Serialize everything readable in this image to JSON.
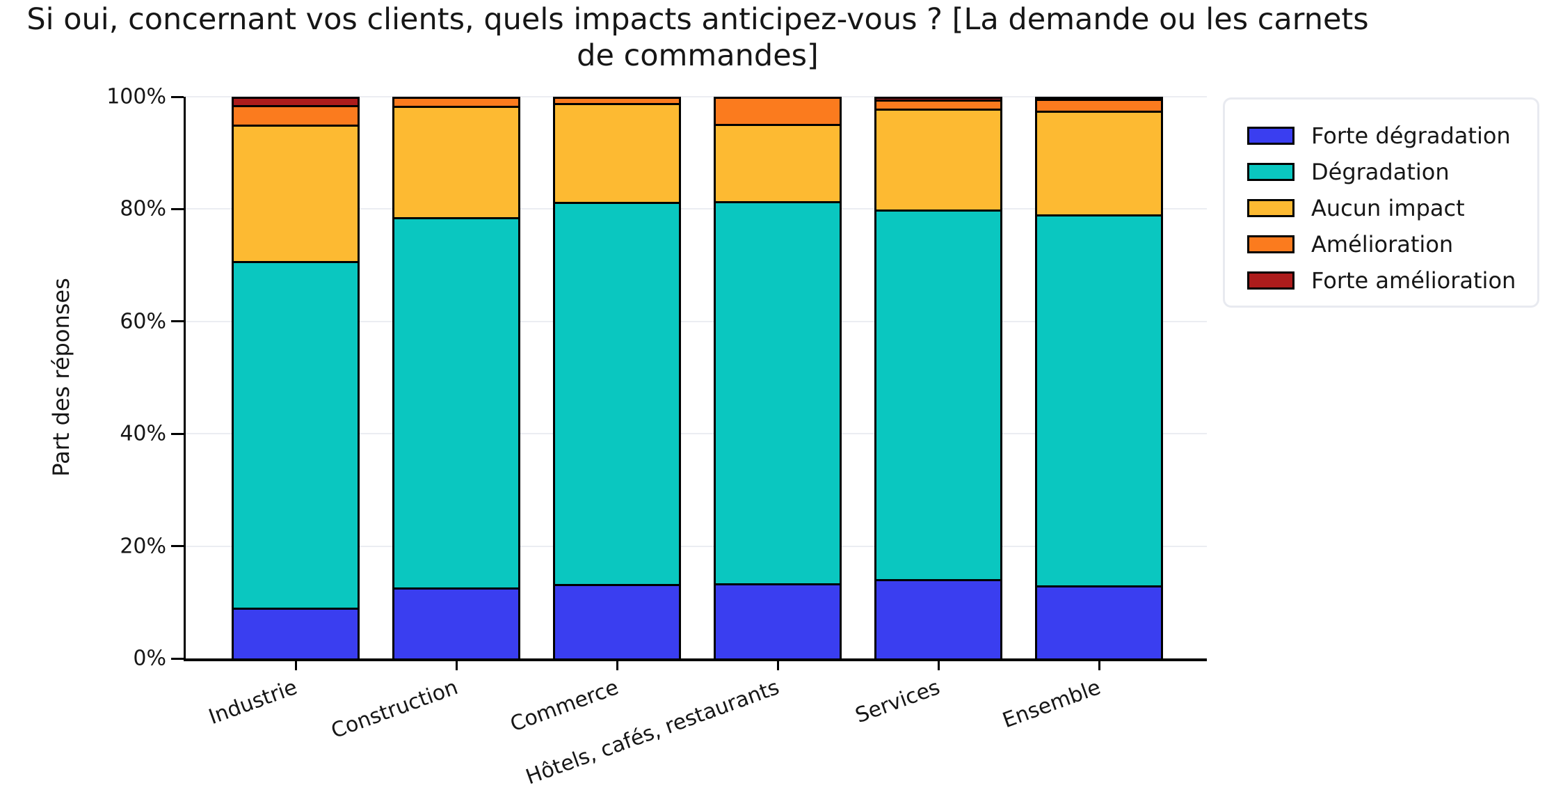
{
  "title": "Si oui, concernant vos clients, quels impacts anticipez-vous ? [La demande ou les carnets de commandes]",
  "y_axis": {
    "label": "Part des réponses",
    "tick_labels": [
      "0%",
      "20%",
      "40%",
      "60%",
      "80%",
      "100%"
    ],
    "tick_values": [
      0,
      20,
      40,
      60,
      80,
      100
    ]
  },
  "colors": {
    "bar_outline": "#000000",
    "gridline": "#ebedf2",
    "legend_border": "#e8eaf0"
  },
  "chart_data": {
    "type": "bar",
    "stacked": true,
    "title": "Si oui, concernant vos clients, quels impacts anticipez-vous ? [La demande ou les carnets de commandes]",
    "xlabel": "",
    "ylabel": "Part des réponses",
    "ylim": [
      0,
      100
    ],
    "grid": "horizontal",
    "legend_position": "right",
    "categories": [
      "Industrie",
      "Construction",
      "Commerce",
      "Hôtels, cafés, restaurants",
      "Services",
      "Ensemble"
    ],
    "series": [
      {
        "name": "Forte dégradation",
        "color": "#3a3ef0",
        "values": [
          9.0,
          12.7,
          13.3,
          13.4,
          14.1,
          13.0
        ]
      },
      {
        "name": "Dégradation",
        "color": "#0ac7c0",
        "values": [
          61.8,
          65.9,
          68.0,
          68.0,
          65.8,
          66.1
        ]
      },
      {
        "name": "Aucun impact",
        "color": "#fdba32",
        "values": [
          24.3,
          19.8,
          17.6,
          13.8,
          18.0,
          18.4
        ]
      },
      {
        "name": "Amélioration",
        "color": "#fb7b1e",
        "values": [
          3.4,
          1.6,
          1.1,
          4.8,
          1.6,
          2.1
        ]
      },
      {
        "name": "Forte amélioration",
        "color": "#ad1c1c",
        "values": [
          1.5,
          0,
          0,
          0,
          0.5,
          0.4
        ]
      }
    ]
  }
}
